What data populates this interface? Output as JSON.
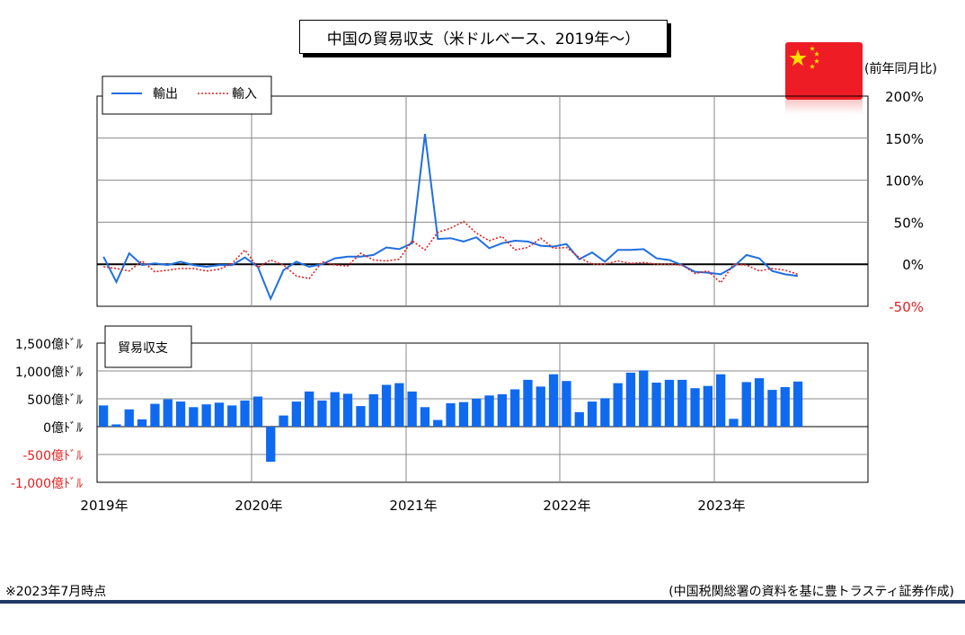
{
  "title": "中国の貿易収支（米ドルベース、2019年～）",
  "unit_label": "(前年同月比)",
  "footer": {
    "note": "※2023年7月時点",
    "source": "(中国税関総署の資料を基に豊トラスティ証券作成)"
  },
  "colors": {
    "export_line": "#1f6fe0",
    "import_line": "#e02020",
    "bar": "#0f6af0",
    "negative_label": "#e02020",
    "footer_line": "#1f3864",
    "flag_red": "#ee1c25",
    "flag_star": "#ffde00"
  },
  "flag": {
    "icon": "china-flag-icon"
  },
  "chart_data": [
    {
      "type": "line",
      "legend": [
        "輸出",
        "輸入"
      ],
      "legend_placement": "top-left",
      "grid": true,
      "ylim": [
        -50,
        200
      ],
      "y_ticks": [
        "200%",
        "150%",
        "100%",
        "50%",
        "0%",
        "-50%"
      ],
      "x_labels": [
        "2019年",
        "2020年",
        "2021年",
        "2022年",
        "2023年"
      ],
      "x": [
        "2019-01",
        "2019-02",
        "2019-03",
        "2019-04",
        "2019-05",
        "2019-06",
        "2019-07",
        "2019-08",
        "2019-09",
        "2019-10",
        "2019-11",
        "2019-12",
        "2020-01",
        "2020-02",
        "2020-03",
        "2020-04",
        "2020-05",
        "2020-06",
        "2020-07",
        "2020-08",
        "2020-09",
        "2020-10",
        "2020-11",
        "2020-12",
        "2021-01",
        "2021-02",
        "2021-03",
        "2021-04",
        "2021-05",
        "2021-06",
        "2021-07",
        "2021-08",
        "2021-09",
        "2021-10",
        "2021-11",
        "2021-12",
        "2022-01",
        "2022-02",
        "2022-03",
        "2022-04",
        "2022-05",
        "2022-06",
        "2022-07",
        "2022-08",
        "2022-09",
        "2022-10",
        "2022-11",
        "2022-12",
        "2023-01",
        "2023-02",
        "2023-03",
        "2023-04",
        "2023-05",
        "2023-06",
        "2023-07"
      ],
      "series": [
        {
          "name": "輸出",
          "style": "solid",
          "values": [
            9,
            -21,
            13,
            -1,
            1,
            -1,
            3,
            -1,
            -3,
            -1,
            -1,
            8,
            -3,
            -41,
            -7,
            3,
            -3,
            0,
            7,
            9,
            9,
            11,
            20,
            18,
            25,
            155,
            30,
            31,
            27,
            32,
            19,
            25,
            28,
            27,
            22,
            21,
            24,
            6,
            14,
            3,
            17,
            17,
            18,
            7,
            5,
            -1,
            -9,
            -10,
            -12,
            -3,
            11,
            7,
            -8,
            -12,
            -14
          ]
        },
        {
          "name": "輸入",
          "style": "dotted",
          "values": [
            -3,
            -5,
            -8,
            4,
            -9,
            -7,
            -5,
            -5,
            -8,
            -6,
            1,
            17,
            -4,
            5,
            -1,
            -14,
            -17,
            3,
            -1,
            -2,
            13,
            5,
            4,
            6,
            28,
            17,
            38,
            43,
            51,
            37,
            28,
            33,
            17,
            20,
            31,
            19,
            20,
            8,
            0,
            0,
            4,
            1,
            2,
            0,
            0,
            -1,
            -11,
            -8,
            -22,
            0,
            -1,
            -8,
            -5,
            -7,
            -12
          ]
        }
      ]
    },
    {
      "type": "bar",
      "title": "貿易収支",
      "grid": true,
      "ylim": [
        -1000,
        1500
      ],
      "y_ticks": [
        {
          "value": 1500,
          "label": "1,500億ﾄﾞﾙ",
          "negative": false
        },
        {
          "value": 1000,
          "label": "1,000億ﾄﾞﾙ",
          "negative": false
        },
        {
          "value": 500,
          "label": "500億ﾄﾞﾙ",
          "negative": false
        },
        {
          "value": 0,
          "label": "0億ﾄﾞﾙ",
          "negative": false
        },
        {
          "value": -500,
          "label": "-500億ﾄﾞﾙ",
          "negative": true
        },
        {
          "value": -1000,
          "label": "-1,000億ﾄﾞﾙ",
          "negative": true
        }
      ],
      "x_labels": [
        "2019年",
        "2020年",
        "2021年",
        "2022年",
        "2023年"
      ],
      "values": [
        380,
        40,
        310,
        130,
        410,
        490,
        450,
        350,
        400,
        430,
        380,
        470,
        540,
        -630,
        200,
        450,
        630,
        470,
        620,
        590,
        370,
        580,
        750,
        780,
        630,
        350,
        120,
        420,
        440,
        500,
        560,
        580,
        670,
        840,
        720,
        940,
        820,
        260,
        450,
        510,
        780,
        970,
        1010,
        790,
        840,
        840,
        690,
        730,
        940,
        140,
        800,
        870,
        660,
        710,
        810
      ]
    }
  ]
}
